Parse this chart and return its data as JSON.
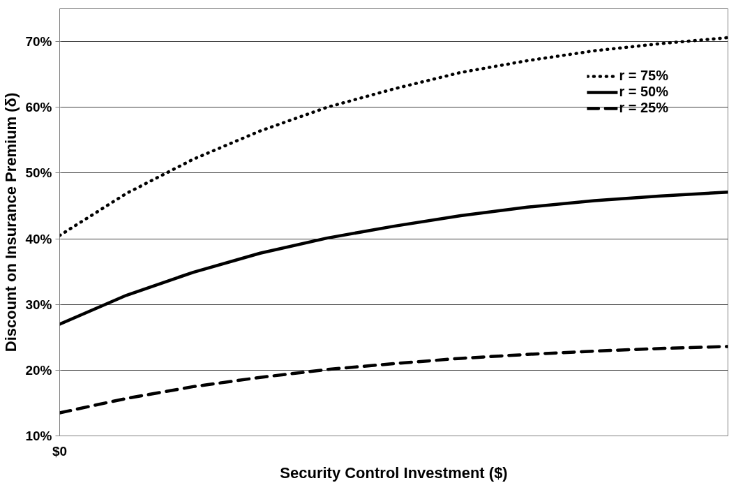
{
  "chart_data": {
    "type": "line",
    "xlabel": "Security Control Investment ($)",
    "ylabel": "Discount on Insurance Premium (δ)",
    "categories": [
      "$0",
      null,
      null,
      null,
      null,
      null,
      null,
      null,
      null,
      null,
      null
    ],
    "ylim": [
      10,
      75
    ],
    "yticks": [
      {
        "value": 10,
        "label": "10%"
      },
      {
        "value": 20,
        "label": "20%"
      },
      {
        "value": 30,
        "label": "30%"
      },
      {
        "value": 40,
        "label": "40%"
      },
      {
        "value": 50,
        "label": "50%"
      },
      {
        "value": 60,
        "label": "60%"
      },
      {
        "value": 70,
        "label": "70%"
      }
    ],
    "grid": "y",
    "legend": "top right",
    "series": [
      {
        "name": "r = 75%",
        "color": "#000000",
        "line_style": "dotted",
        "values": [
          40.5,
          46.9,
          52.1,
          56.4,
          60.0,
          62.8,
          65.3,
          67.1,
          68.6,
          69.7,
          70.6
        ]
      },
      {
        "name": "r = 50%",
        "color": "#000000",
        "line_style": "solid",
        "values": [
          27.0,
          31.4,
          34.9,
          37.8,
          40.1,
          41.9,
          43.5,
          44.8,
          45.8,
          46.5,
          47.1
        ]
      },
      {
        "name": "r = 25%",
        "color": "#000000",
        "line_style": "dashed",
        "values": [
          13.5,
          15.7,
          17.5,
          18.9,
          20.1,
          21.0,
          21.8,
          22.4,
          22.9,
          23.3,
          23.6
        ]
      }
    ]
  }
}
